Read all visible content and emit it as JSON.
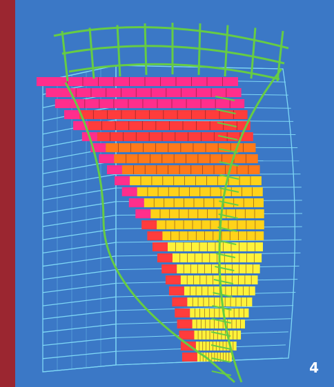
{
  "figure": {
    "page_number": "4",
    "colors": {
      "background": "#3b78c6",
      "side_band": "#9b2630",
      "mesh_outer": "#7fd8f5",
      "mesh_surface": "#66cc44",
      "layer_colors": [
        "#ff2e8c",
        "#ff3c3c",
        "#ff7a1a",
        "#ffd21a",
        "#fff23a"
      ]
    }
  }
}
